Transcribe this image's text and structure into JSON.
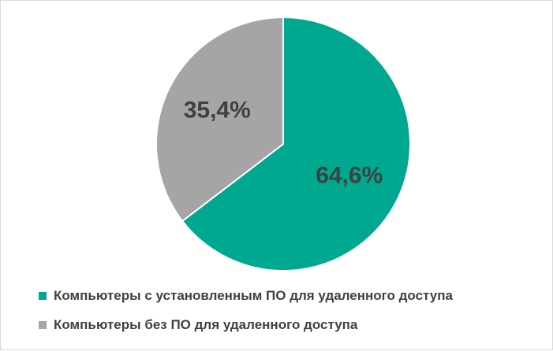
{
  "chart_data": {
    "type": "pie",
    "title": "",
    "slices": [
      {
        "label": "Компьютеры с установленным ПО для удаленного доступа",
        "value": 64.6,
        "display": "64,6%",
        "color": "#00a88f"
      },
      {
        "label": "Компьютеры без ПО для удаленного доступа",
        "value": 35.4,
        "display": "35,4%",
        "color": "#a6a4a4"
      }
    ],
    "start_angle": "12 o'clock",
    "direction": "clockwise",
    "legend_position": "bottom-left"
  }
}
